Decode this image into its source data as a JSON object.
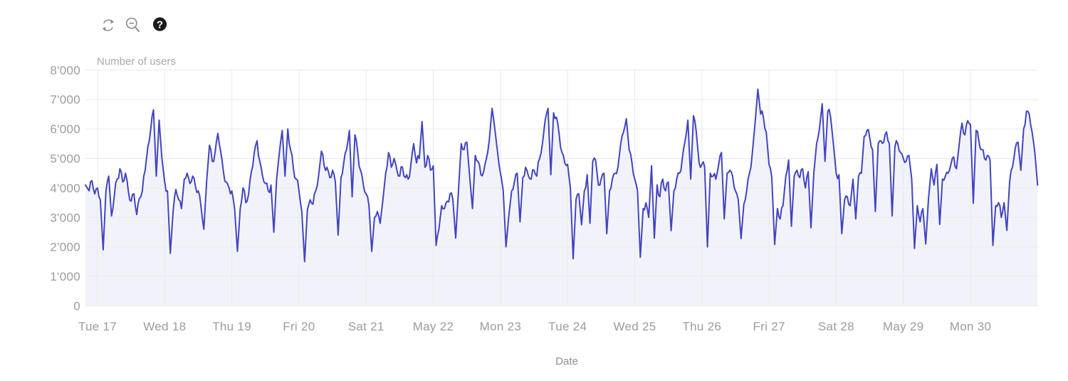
{
  "toolbar": {
    "icons": [
      "refresh-icon",
      "zoom-out-icon",
      "help-icon"
    ],
    "help_label": "?"
  },
  "colors": {
    "line": "#4145c0",
    "area_fill": "#f2f3fa",
    "grid": "#e9e9ee",
    "tick_label": "#9b9ba2",
    "axis_title": "#a8a8af",
    "xaxis_title": "#8f8f96",
    "icon_gray": "#8a8a8a",
    "help_bg": "#1b1b1b"
  },
  "chart_data": {
    "type": "line",
    "title": "Number of users",
    "ylabel": "Number of users",
    "xlabel": "Date",
    "grid": true,
    "legend": false,
    "ylim": [
      0,
      8000
    ],
    "y_tick_labels": [
      "0",
      "1'000",
      "2'000",
      "3'000",
      "4'000",
      "5'000",
      "6'000",
      "7'000",
      "8'000"
    ],
    "x_tick_labels": [
      "Tue 17",
      "Wed 18",
      "Thu 19",
      "Fri 20",
      "Sat 21",
      "May 22",
      "Mon 23",
      "Tue 24",
      "Wed 25",
      "Thu 26",
      "Fri 27",
      "Sat 28",
      "May 29",
      "Mon 30"
    ],
    "x_start_hour": -4.33,
    "x_end_hour": 336,
    "hours_per_tick": 24,
    "texture": {
      "midpoint_jitter": 170,
      "spike_threshold": 800
    },
    "series": [
      {
        "name": "Number of users",
        "step_hours": 1,
        "values": [
          4100,
          3900,
          4250,
          3800,
          4000,
          3600,
          1900,
          3900,
          4400,
          3050,
          3750,
          4300,
          4650,
          4200,
          4500,
          3900,
          3550,
          3800,
          3100,
          3650,
          3900,
          4600,
          5400,
          6000,
          6650,
          4400,
          6300,
          5000,
          4200,
          3900,
          1780,
          3200,
          3950,
          3600,
          3300,
          4300,
          4500,
          4150,
          4400,
          4050,
          3900,
          3350,
          2600,
          4250,
          5450,
          4900,
          5200,
          5850,
          5250,
          4550,
          4200,
          4000,
          3900,
          3300,
          1850,
          3300,
          4000,
          3500,
          3800,
          4550,
          5200,
          5600,
          4900,
          4400,
          4150,
          3900,
          4100,
          2500,
          4300,
          5200,
          5950,
          4400,
          6000,
          5300,
          4650,
          4300,
          3900,
          3200,
          1500,
          3250,
          3600,
          3450,
          3900,
          4400,
          5250,
          4750,
          4700,
          4350,
          4600,
          4200,
          2400,
          4350,
          4850,
          5300,
          5950,
          3700,
          5800,
          5200,
          4600,
          4100,
          3800,
          3400,
          1850,
          3000,
          3200,
          2800,
          3600,
          4500,
          5200,
          4700,
          5000,
          4600,
          4400,
          4700,
          4350,
          4300,
          4800,
          5500,
          4850,
          5000,
          6250,
          4700,
          5100,
          4600,
          4750,
          2050,
          2600,
          3400,
          3300,
          3550,
          3800,
          3600,
          2300,
          3900,
          5500,
          5300,
          5550,
          4400,
          3300,
          5100,
          4900,
          4450,
          4550,
          5000,
          5600,
          6700,
          6000,
          5200,
          4500,
          3900,
          2000,
          3050,
          3900,
          4200,
          4500,
          2850,
          4350,
          4700,
          4400,
          4300,
          4600,
          4400,
          5000,
          5500,
          6300,
          6700,
          4450,
          6550,
          6400,
          5800,
          5200,
          4850,
          4800,
          4000,
          1600,
          3600,
          3800,
          2750,
          3900,
          4450,
          2800,
          4900,
          4950,
          4100,
          4300,
          4500,
          2450,
          3900,
          4300,
          4500,
          4700,
          5500,
          5900,
          6350,
          5300,
          4850,
          4300,
          3900,
          1650,
          3300,
          3500,
          3000,
          4750,
          2300,
          4100,
          3700,
          4300,
          3900,
          4200,
          2550,
          3900,
          4300,
          4500,
          5000,
          5600,
          6300,
          4300,
          6450,
          5900,
          4850,
          4800,
          4700,
          2000,
          4500,
          4400,
          4300,
          4800,
          5200,
          2950,
          4500,
          4600,
          4400,
          3900,
          3600,
          2280,
          3450,
          3900,
          4500,
          5150,
          6200,
          7350,
          6500,
          6400,
          5900,
          4800,
          4350,
          2080,
          3300,
          2950,
          3400,
          4400,
          4950,
          2700,
          4400,
          4600,
          4350,
          4650,
          4000,
          4550,
          2650,
          4500,
          5500,
          6000,
          6850,
          4900,
          6600,
          6400,
          5500,
          4500,
          4450,
          2450,
          3600,
          3700,
          3400,
          4300,
          2950,
          4400,
          4500,
          5750,
          5950,
          5700,
          5300,
          3200,
          5500,
          5600,
          5550,
          5900,
          5500,
          3050,
          5400,
          5500,
          5200,
          5000,
          4900,
          5100,
          4300,
          1950,
          3400,
          2850,
          3300,
          2100,
          3650,
          4650,
          4100,
          4800,
          2760,
          4300,
          4400,
          4500,
          4800,
          5050,
          4650,
          5500,
          6200,
          5800,
          6280,
          6150,
          3480,
          5950,
          5600,
          5300,
          5000,
          5100,
          4950,
          2050,
          3400,
          3500,
          3000,
          3500,
          2560,
          4200,
          4700,
          5350,
          5550,
          4600,
          6000,
          6600,
          6500,
          5900,
          5200,
          4100
        ]
      }
    ]
  }
}
